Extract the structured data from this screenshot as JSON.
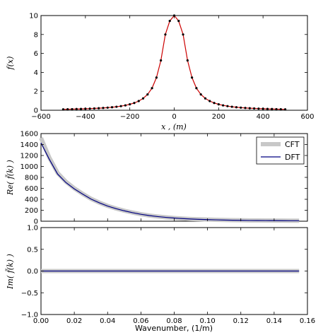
{
  "chart_data": [
    {
      "type": "line",
      "ylabel": "f(x)",
      "xlabel": "x ,  (m)",
      "xlim": [
        -600,
        600
      ],
      "ylim": [
        0,
        10
      ],
      "xticks": [
        "−600",
        "−400",
        "−200",
        "0",
        "200",
        "400",
        "600"
      ],
      "yticks": [
        "0",
        "2",
        "4",
        "6",
        "8",
        "10"
      ],
      "series": [
        {
          "style": "red line with black point markers",
          "color": "#cc0000",
          "marker_color": "#000000",
          "x": [
            -500,
            -480,
            -460,
            -440,
            -420,
            -400,
            -380,
            -360,
            -340,
            -320,
            -300,
            -280,
            -260,
            -240,
            -220,
            -200,
            -180,
            -160,
            -140,
            -120,
            -100,
            -80,
            -60,
            -40,
            -20,
            0,
            20,
            40,
            60,
            80,
            100,
            120,
            140,
            160,
            180,
            200,
            220,
            240,
            260,
            280,
            300,
            320,
            340,
            360,
            380,
            400,
            420,
            440,
            460,
            480,
            500
          ],
          "y": [
            0.099,
            0.108,
            0.118,
            0.129,
            0.142,
            0.156,
            0.173,
            0.193,
            0.216,
            0.244,
            0.277,
            0.319,
            0.37,
            0.435,
            0.517,
            0.625,
            0.769,
            0.971,
            1.25,
            1.67,
            2.33,
            3.45,
            5.26,
            8.0,
            9.43,
            10.0,
            9.43,
            8.0,
            5.26,
            3.45,
            2.33,
            1.67,
            1.25,
            0.971,
            0.769,
            0.625,
            0.517,
            0.435,
            0.37,
            0.319,
            0.277,
            0.244,
            0.216,
            0.193,
            0.173,
            0.156,
            0.142,
            0.129,
            0.118,
            0.108,
            0.099
          ]
        }
      ]
    },
    {
      "type": "line",
      "ylabel": "Re( f̃(k) )",
      "xlim": [
        0,
        0.16
      ],
      "ylim": [
        0,
        1600
      ],
      "yticks": [
        "0",
        "200",
        "400",
        "600",
        "800",
        "1000",
        "1200",
        "1400",
        "1600"
      ],
      "legend": "top-right",
      "series": [
        {
          "name": "CFT",
          "color": "#c8c8c8",
          "x": [
            0,
            0.005,
            0.01,
            0.015,
            0.02,
            0.025,
            0.03,
            0.035,
            0.04,
            0.045,
            0.05,
            0.055,
            0.06,
            0.065,
            0.07,
            0.075,
            0.08,
            0.085,
            0.09,
            0.095,
            0.1,
            0.105,
            0.11,
            0.115,
            0.12,
            0.125,
            0.13,
            0.135,
            0.14,
            0.145,
            0.15,
            0.155
          ],
          "y": [
            1520,
            1160,
            880,
            720,
            600,
            500,
            410,
            340,
            280,
            232,
            192,
            158,
            128,
            104,
            86,
            71,
            59,
            49,
            41,
            35,
            30,
            26,
            22,
            19,
            17,
            15,
            14,
            13,
            12,
            11,
            10,
            10
          ]
        },
        {
          "name": "DFT",
          "color": "#000080",
          "x": [
            0,
            0.005,
            0.01,
            0.015,
            0.02,
            0.025,
            0.03,
            0.035,
            0.04,
            0.045,
            0.05,
            0.055,
            0.06,
            0.065,
            0.07,
            0.075,
            0.08,
            0.085,
            0.09,
            0.095,
            0.1,
            0.105,
            0.11,
            0.115,
            0.12,
            0.125,
            0.13,
            0.135,
            0.14,
            0.145,
            0.15,
            0.155
          ],
          "y": [
            1430,
            1130,
            860,
            705,
            590,
            495,
            405,
            336,
            277,
            230,
            190,
            156,
            127,
            103,
            85,
            70,
            58,
            48,
            40,
            34,
            29,
            25,
            21,
            18,
            16,
            14,
            13,
            12,
            11,
            10,
            9,
            9
          ]
        }
      ]
    },
    {
      "type": "line",
      "ylabel": "Im( f̃(k) )",
      "xlabel": "Wavenumber,  (1/m)",
      "xlim": [
        0,
        0.16
      ],
      "ylim": [
        -1.0,
        1.0
      ],
      "xticks": [
        "0.00",
        "0.02",
        "0.04",
        "0.06",
        "0.08",
        "0.10",
        "0.12",
        "0.14",
        "0.16"
      ],
      "yticks": [
        "−1.0",
        "−0.5",
        "0.0",
        "0.5",
        "1.0"
      ],
      "series": [
        {
          "name": "CFT",
          "color": "#c8c8c8",
          "x": [
            0,
            0.155
          ],
          "y": [
            0,
            0
          ]
        },
        {
          "name": "DFT",
          "color": "#000080",
          "x": [
            0,
            0.155
          ],
          "y": [
            0,
            0
          ]
        }
      ]
    }
  ]
}
